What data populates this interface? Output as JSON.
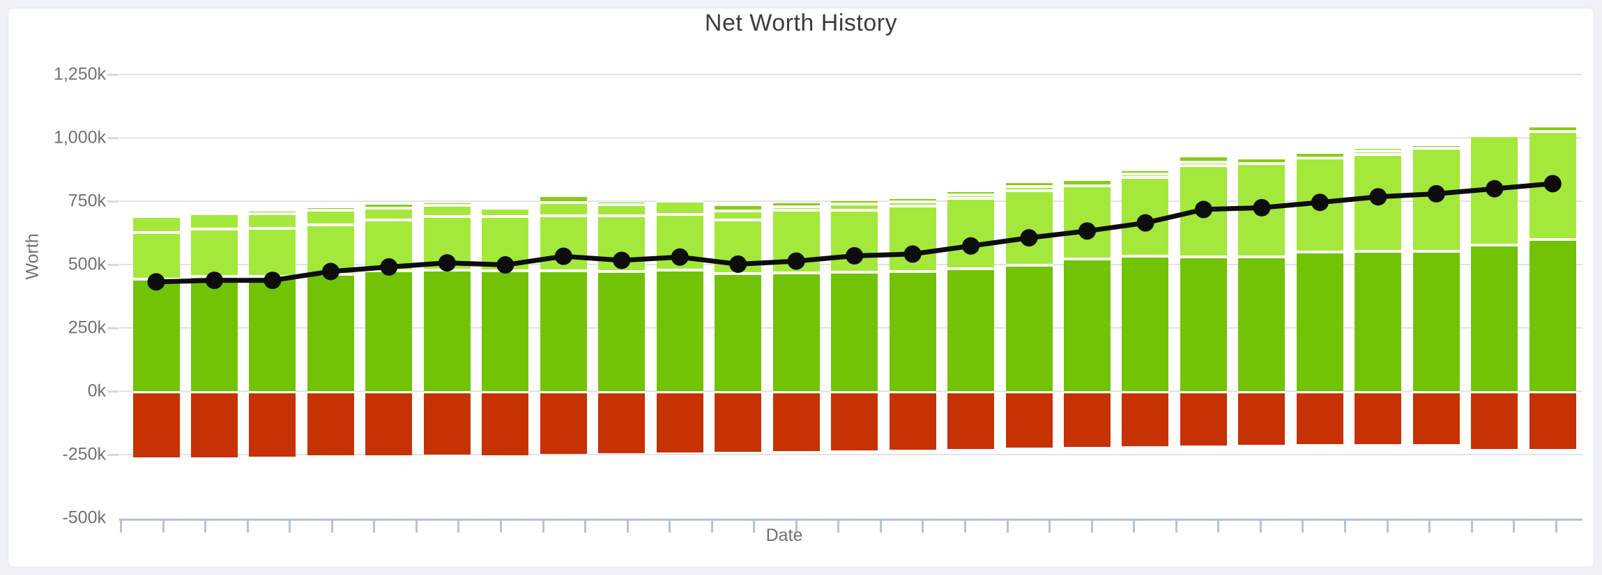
{
  "title": "Net Worth History",
  "y_axis": {
    "label": "Worth",
    "tick_labels": [
      "1,250k",
      "1,000k",
      "750k",
      "500k",
      "250k",
      "0k",
      "-250k",
      "-500k"
    ],
    "tick_values": [
      1250,
      1000,
      750,
      500,
      250,
      0,
      -250,
      -500
    ]
  },
  "x_axis": {
    "label": "Date"
  },
  "colors": {
    "assets_base": "#72c306",
    "assets_mid": "#a4e83c",
    "assets_upper": "#a4e83c",
    "assets_cap": "#83cf0d",
    "debts": "#c63203",
    "net_line": "#0d0d0d",
    "grid": "#e3e3e3",
    "axis": "#b3c4d8",
    "text": "#717171",
    "title_text": "#3c3c3c",
    "card_bg": "#ffffff",
    "page_bg": "#eef2f7"
  },
  "chart_data": {
    "type": "bar",
    "subtype": "stacked-bars-with-line-overlay",
    "title": "Net Worth History",
    "xlabel": "Date",
    "ylabel": "Worth",
    "unit": "thousands (k)",
    "ylim": [
      -500,
      1250
    ],
    "grid": true,
    "legend": false,
    "x_tick_labels_visible": false,
    "num_points": 25,
    "series": [
      {
        "name": "assets-base",
        "stack": "assets",
        "color": "#72c306",
        "values": [
          436,
          447,
          448,
          457,
          471,
          473,
          471,
          470,
          468,
          473,
          459,
          462,
          466,
          468,
          478,
          491,
          516,
          528,
          526,
          526,
          544,
          548,
          548,
          571,
          595
        ]
      },
      {
        "name": "assets-mid",
        "stack": "assets",
        "color": "#a4e83c",
        "values": [
          186,
          189,
          190,
          195,
          201,
          211,
          213,
          218,
          220,
          220,
          211,
          247,
          243,
          259,
          279,
          295,
          289,
          310,
          359,
          369,
          373,
          381,
          406,
          432,
          425
        ]
      },
      {
        "name": "assets-upper",
        "stack": "assets",
        "color": "#a4e83c",
        "values": [
          62,
          59,
          59,
          58,
          46,
          44,
          34,
          52,
          43,
          53,
          37,
          14,
          25,
          15,
          14,
          17,
          0,
          15,
          14,
          0,
          0,
          14,
          0,
          0,
          0
        ]
      },
      {
        "name": "assets-cap",
        "stack": "assets",
        "color": "#83cf0d",
        "values": [
          11,
          12,
          12,
          12,
          19,
          15,
          12,
          28,
          15,
          11,
          24,
          20,
          17,
          18,
          16,
          20,
          26,
          16,
          25,
          21,
          22,
          14,
          15,
          13,
          21
        ]
      },
      {
        "name": "debts",
        "stack": "debts",
        "color": "#c63203",
        "values": [
          -262,
          -262,
          -258,
          -253,
          -252,
          -250,
          -252,
          -248,
          -245,
          -241,
          -239,
          -237,
          -233,
          -230,
          -227,
          -223,
          -220,
          -217,
          -214,
          -211,
          -208,
          -208,
          -208,
          -229,
          -228
        ]
      },
      {
        "name": "net-worth",
        "type": "line",
        "color": "#0d0d0d",
        "values": [
          432,
          438,
          438,
          473,
          491,
          507,
          499,
          533,
          517,
          530,
          502,
          514,
          535,
          542,
          574,
          606,
          633,
          665,
          718,
          725,
          746,
          768,
          780,
          800,
          820
        ]
      }
    ]
  }
}
